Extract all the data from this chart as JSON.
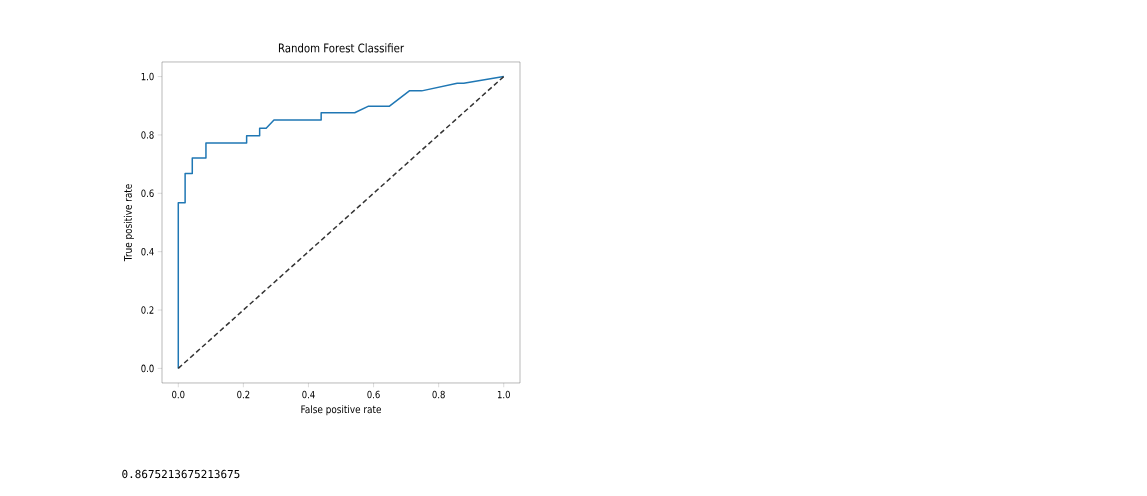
{
  "chart_data": {
    "type": "line",
    "title": "Random Forest Classifier",
    "xlabel": "False positive rate",
    "ylabel": "True positive rate",
    "xlim": [
      -0.05,
      1.05
    ],
    "ylim": [
      -0.05,
      1.05
    ],
    "xticks": [
      {
        "value": 0,
        "label": "0.0"
      },
      0.2,
      0.4,
      0.6,
      0.8,
      {
        "value": 1,
        "label": "1.0"
      }
    ],
    "yticks": [
      {
        "value": 0,
        "label": "0.0"
      },
      0.2,
      0.4,
      0.6,
      0.8,
      {
        "value": 1,
        "label": "1.0"
      }
    ],
    "series": [
      {
        "color": "#1f77b4",
        "line_style": "solid",
        "x": [
          0,
          0,
          0.021,
          0.021,
          0.043,
          0.043,
          0.085,
          0.085,
          0.21,
          0.21,
          0.25,
          0.25,
          0.27,
          0.294,
          0.439,
          0.439,
          0.542,
          0.583,
          0.648,
          0.71,
          0.748,
          0.857,
          0.877,
          1
        ],
        "values": [
          0,
          0.568,
          0.568,
          0.668,
          0.668,
          0.721,
          0.721,
          0.772,
          0.772,
          0.797,
          0.797,
          0.823,
          0.823,
          0.851,
          0.851,
          0.876,
          0.876,
          0.898,
          0.898,
          0.951,
          0.951,
          0.977,
          0.977,
          1
        ]
      },
      {
        "color": "#333333",
        "line_style": "dashed",
        "x": [
          0,
          1
        ],
        "values": [
          0,
          1
        ]
      }
    ],
    "annotations": [
      "0.8675213675213675"
    ]
  }
}
